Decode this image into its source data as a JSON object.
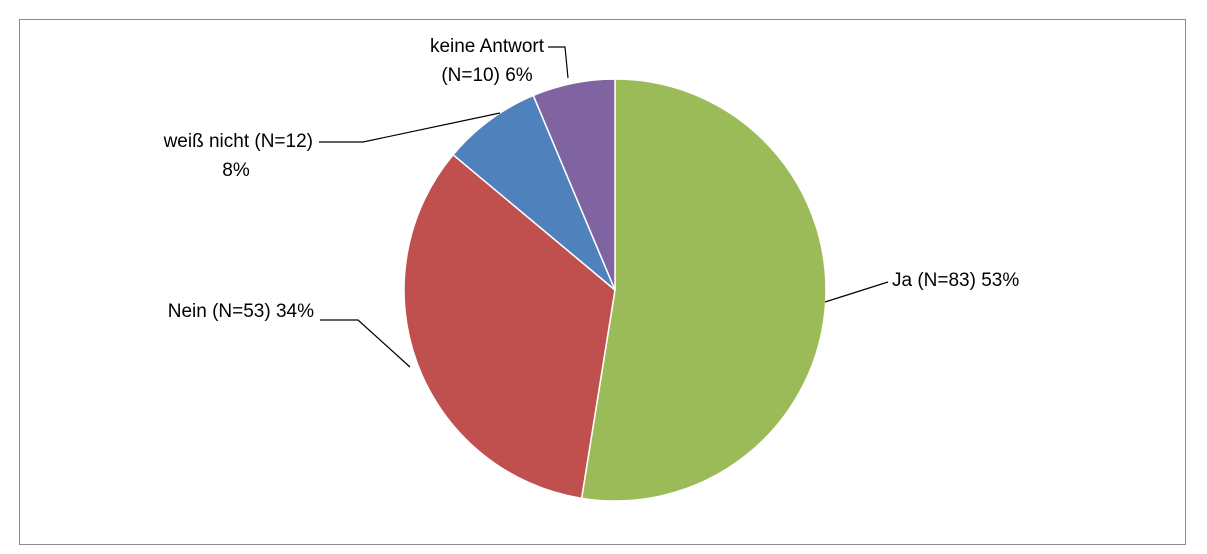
{
  "chart_data": {
    "type": "pie",
    "title": "",
    "legend": "none",
    "slices": [
      {
        "label_lines": [
          "Ja (N=83) 53%"
        ],
        "value": 83,
        "percent": 53,
        "color": "#9BBB59"
      },
      {
        "label_lines": [
          "Nein (N=53) 34%"
        ],
        "value": 53,
        "percent": 34,
        "color": "#C0504D"
      },
      {
        "label_lines": [
          "weiß nicht (N=12)",
          "8%"
        ],
        "value": 12,
        "percent": 8,
        "color": "#4F81BD"
      },
      {
        "label_lines": [
          "keine Antwort",
          "(N=10) 6%"
        ],
        "value": 10,
        "percent": 6,
        "color": "#8064A2"
      }
    ]
  }
}
